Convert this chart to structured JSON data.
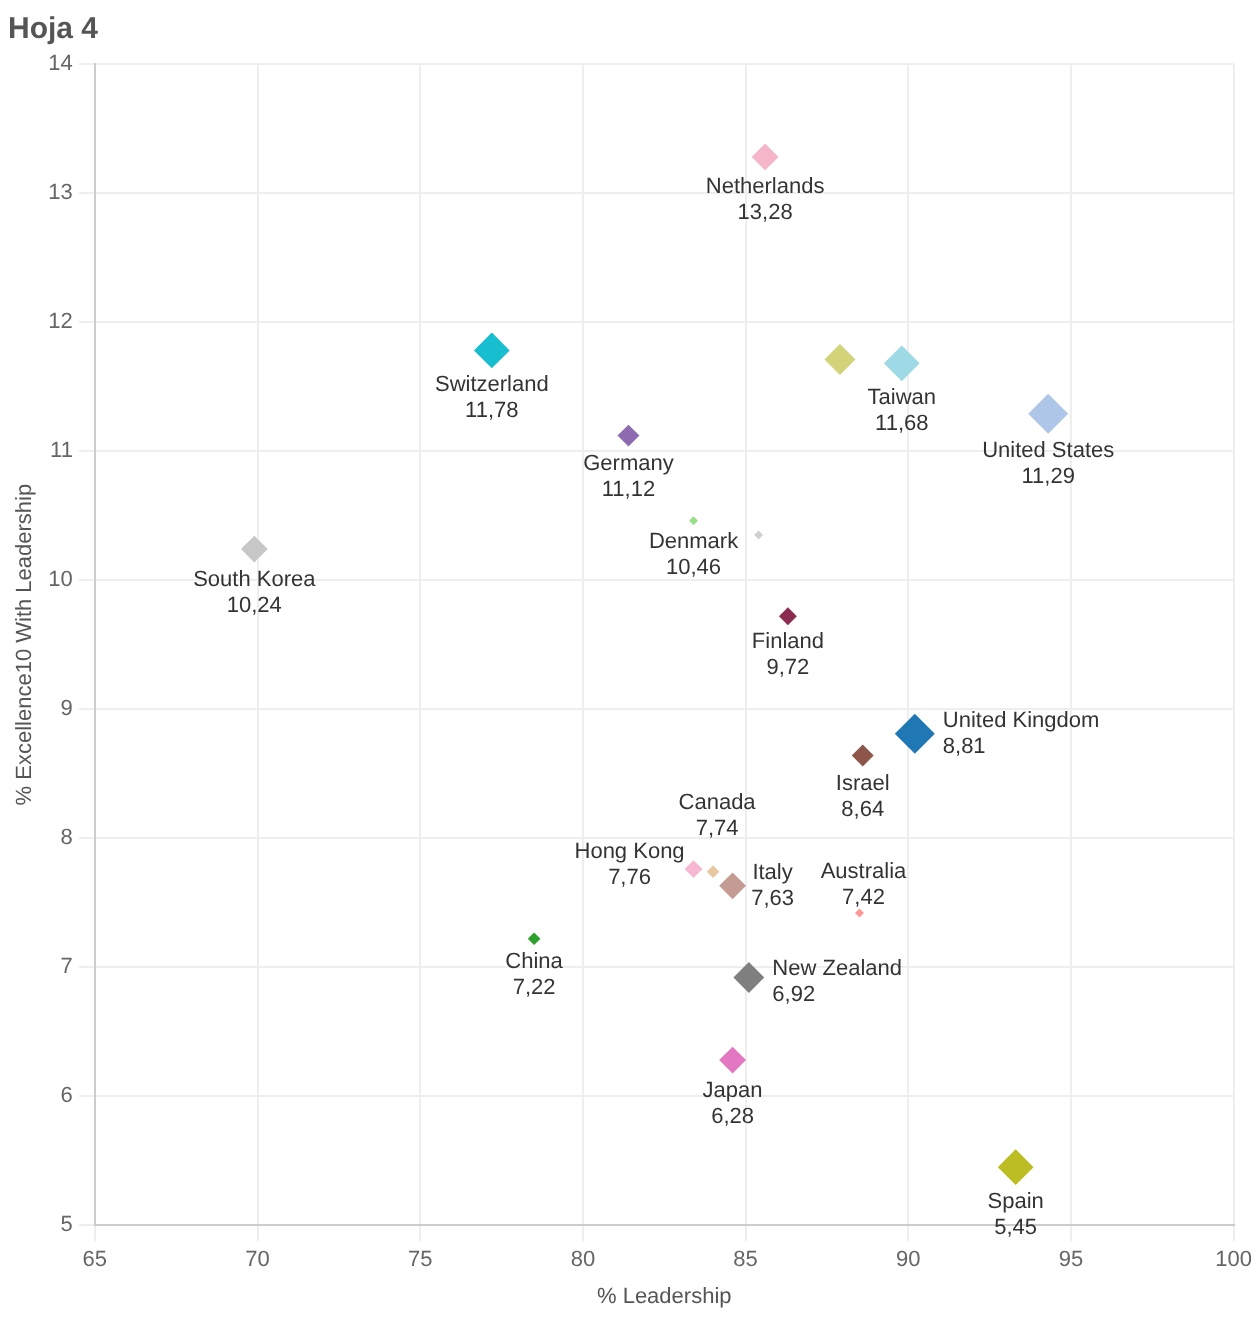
{
  "chart_data": {
    "type": "bubble",
    "title": "Hoja 4",
    "xlabel": "% Leadership",
    "ylabel": "% Excellence10 With Leadership",
    "xlim": [
      65,
      100
    ],
    "xticks": [
      65,
      70,
      75,
      80,
      85,
      90,
      95,
      100
    ],
    "ylim": [
      5,
      14
    ],
    "yticks": [
      5,
      6,
      7,
      8,
      9,
      10,
      11,
      12,
      13,
      14
    ],
    "grid": true,
    "legend": false,
    "marker": "diamond",
    "x": [
      85.6,
      77.2,
      87.9,
      89.8,
      94.3,
      81.4,
      83.4,
      85.4,
      69.9,
      86.3,
      90.2,
      88.6,
      83.4,
      84.0,
      84.6,
      88.5,
      85.1,
      78.5,
      84.6,
      93.3
    ],
    "values": [
      13.28,
      11.78,
      11.71,
      11.68,
      11.29,
      11.12,
      10.46,
      10.35,
      10.24,
      9.72,
      8.81,
      8.64,
      7.76,
      7.74,
      7.63,
      7.42,
      6.92,
      7.22,
      6.28,
      5.45
    ],
    "sizes": [
      0.45,
      0.8,
      0.6,
      0.8,
      1,
      0.3,
      0.05,
      0.05,
      0.45,
      0.2,
      1,
      0.3,
      0.2,
      0.1,
      0.45,
      0.05,
      0.6,
      0.1,
      0.45,
      0.8
    ],
    "colors": [
      "#f4b6c8",
      "#17becf",
      "#d3d37a",
      "#9edae5",
      "#aec7e8",
      "#8c6bb1",
      "#98df8a",
      "#d0d0d0",
      "#c7c7c7",
      "#8c2d4f",
      "#1f77b4",
      "#8c564b",
      "#f7b6d2",
      "#e8c8a0",
      "#c49c94",
      "#ff9896",
      "#7f7f7f",
      "#2ca02c",
      "#e377c2",
      "#bcbd22"
    ],
    "value_labels": [
      "13,28",
      "11,78",
      null,
      "11,68",
      "11,29",
      "11,12",
      "10,46",
      null,
      "10,24",
      "9,72",
      "8,81",
      "8,64",
      "7,76",
      "7,74",
      "7,63",
      "7,42",
      "6,92",
      "7,22",
      "6,28",
      "5,45"
    ],
    "annotations": [
      {
        "text": "Netherlands",
        "x": 85.6,
        "y": 13.28
      },
      {
        "text": "Switzerland",
        "x": 77.2,
        "y": 11.78
      },
      {
        "text": "Taiwan",
        "x": 89.8,
        "y": 11.68
      },
      {
        "text": "United States",
        "x": 94.3,
        "y": 11.29
      },
      {
        "text": "Germany",
        "x": 81.4,
        "y": 11.12
      },
      {
        "text": "Denmark",
        "x": 83.4,
        "y": 10.46
      },
      {
        "text": "South Korea",
        "x": 69.9,
        "y": 10.24
      },
      {
        "text": "Finland",
        "x": 86.3,
        "y": 9.72
      },
      {
        "text": "United Kingdom",
        "x": 90.2,
        "y": 8.81
      },
      {
        "text": "Israel",
        "x": 88.6,
        "y": 8.64
      },
      {
        "text": "Hong Kong",
        "x": 83.4,
        "y": 7.76
      },
      {
        "text": "Canada",
        "x": 84.0,
        "y": 7.74
      },
      {
        "text": "Italy",
        "x": 84.6,
        "y": 7.63
      },
      {
        "text": "Australia",
        "x": 88.5,
        "y": 7.42
      },
      {
        "text": "New Zealand",
        "x": 85.1,
        "y": 6.92
      },
      {
        "text": "China",
        "x": 78.5,
        "y": 7.22
      },
      {
        "text": "Japan",
        "x": 84.6,
        "y": 6.28
      },
      {
        "text": "Spain",
        "x": 93.3,
        "y": 5.45
      }
    ]
  }
}
